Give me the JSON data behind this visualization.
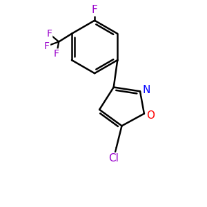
{
  "background_color": "#ffffff",
  "atom_colors": {
    "F": "#9900cc",
    "N": "#0000ff",
    "O": "#ff0000",
    "Cl": "#9900cc"
  },
  "line_color": "#000000",
  "line_width": 1.8,
  "figsize": [
    3.0,
    3.0
  ],
  "dpi": 100,
  "xlim": [
    0,
    10
  ],
  "ylim": [
    0,
    10
  ]
}
